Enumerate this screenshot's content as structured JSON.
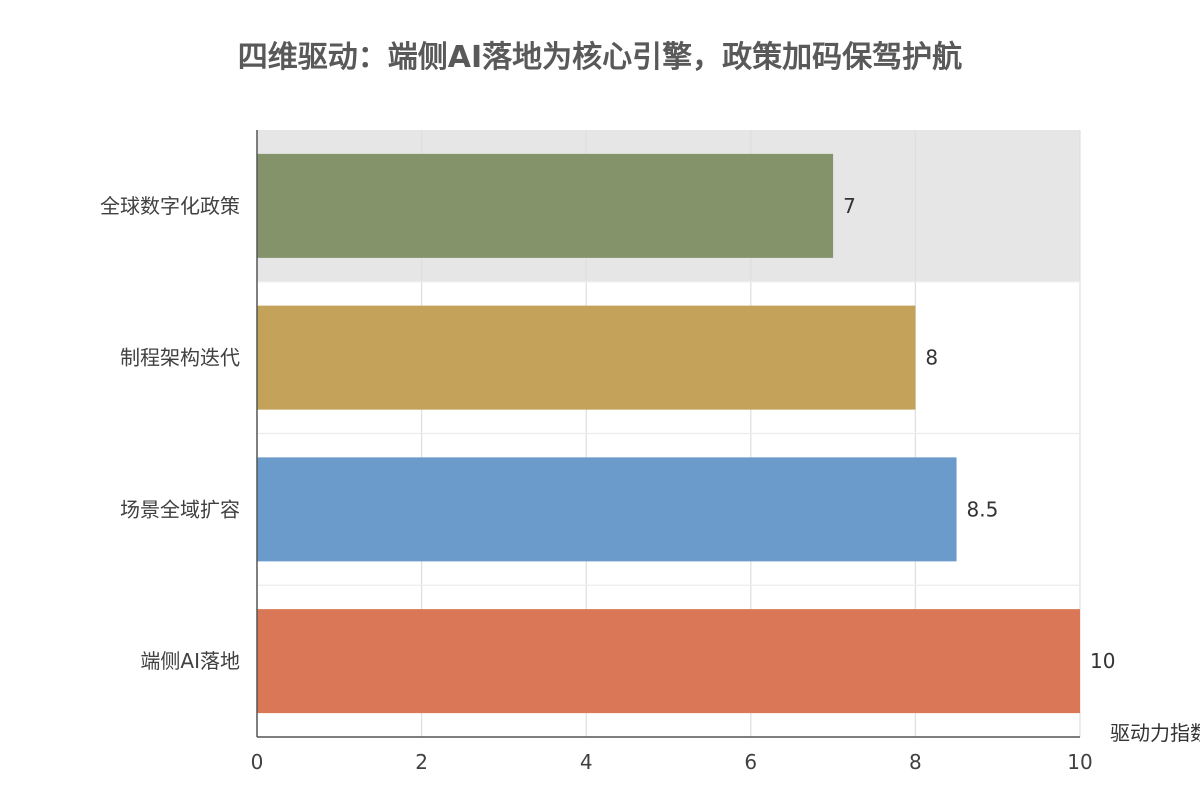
{
  "chart_data": {
    "type": "bar",
    "orientation": "horizontal",
    "title": "四维驱动：端侧AI落地为核心引擎，政策加码保驾护航",
    "xlabel": "驱动力指数",
    "ylabel": "",
    "categories": [
      "全球数字化政策",
      "制程架构迭代",
      "场景全域扩容",
      "端侧AI落地"
    ],
    "values": [
      7,
      8,
      8.5,
      10
    ],
    "value_labels": [
      "7",
      "8",
      "8.5",
      "10"
    ],
    "bar_colors": [
      "#85936b",
      "#c4a25a",
      "#6a9bcb",
      "#da7756"
    ],
    "xlim": [
      0,
      10
    ],
    "x_ticks": [
      0,
      2,
      4,
      6,
      8,
      10
    ],
    "x_tick_labels": [
      "0",
      "2",
      "4",
      "6",
      "8",
      "10"
    ],
    "grid": true,
    "highlight_category": "全球数字化政策",
    "highlight_color": "#e6e6e6"
  }
}
